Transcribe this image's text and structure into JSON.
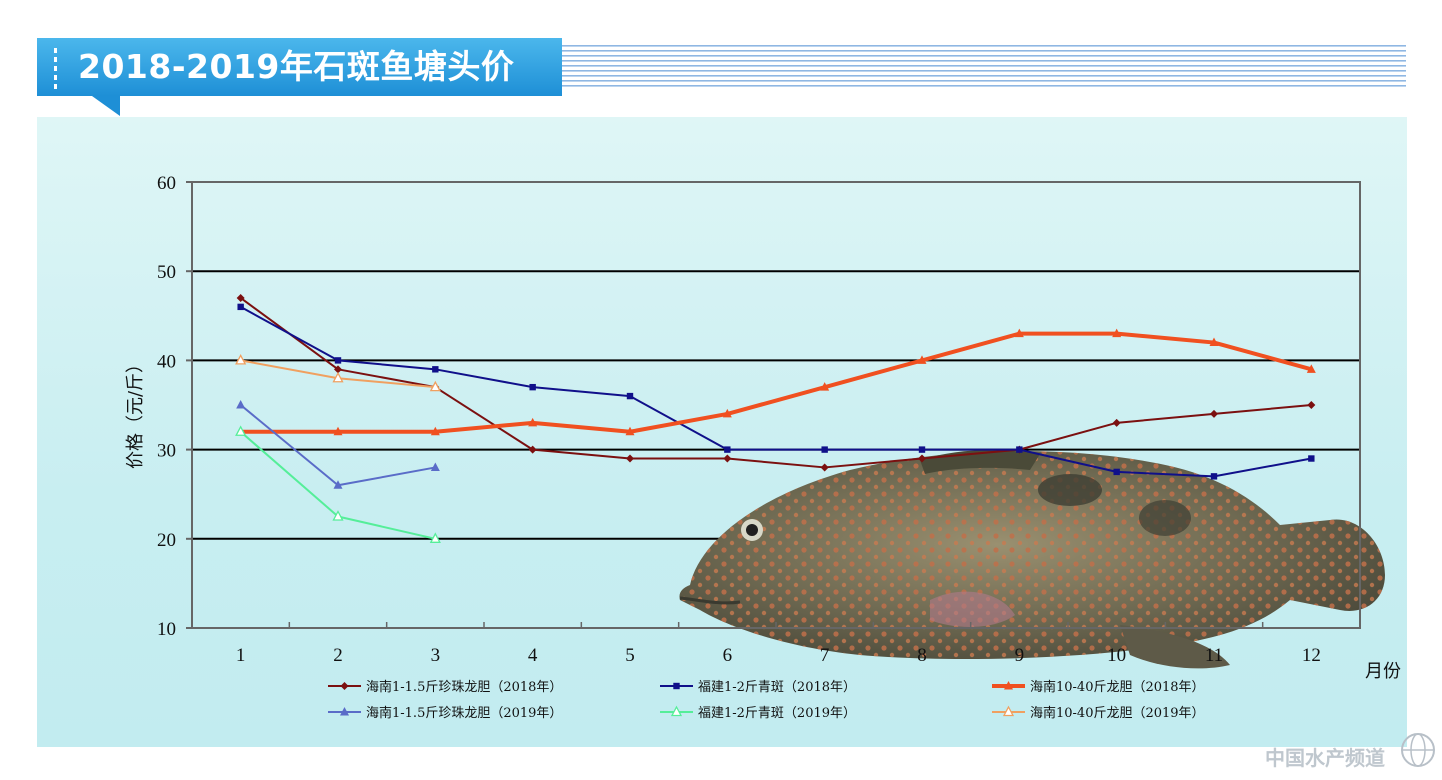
{
  "header": {
    "title": "2018-2019年石斑鱼塘头价"
  },
  "colors": {
    "banner_blue": "#2fa0de",
    "panel_background": "#c8eef1",
    "gridline": "#000000",
    "axis": "#666666"
  },
  "chart_data": {
    "type": "line",
    "title": "2018-2019年石斑鱼塘头价",
    "xlabel": "月份",
    "ylabel": "价格（元/斤）",
    "categories": [
      "1",
      "2",
      "3",
      "4",
      "5",
      "6",
      "7",
      "8",
      "9",
      "10",
      "11",
      "12"
    ],
    "x": [
      1,
      2,
      3,
      4,
      5,
      6,
      7,
      8,
      9,
      10,
      11,
      12
    ],
    "ylim": [
      10,
      60
    ],
    "yticks": [
      10,
      20,
      30,
      40,
      50,
      60
    ],
    "grid": true,
    "legend_position": "bottom",
    "series": [
      {
        "name": "海南1-1.5斤珍珠龙胆（2018年）",
        "color": "#7b1010",
        "marker": "diamond",
        "width": 2,
        "values": [
          47,
          39,
          37,
          30,
          29,
          29,
          28,
          29,
          30,
          33,
          34,
          35
        ]
      },
      {
        "name": "福建1-2斤青斑（2018年）",
        "color": "#10108a",
        "marker": "square",
        "width": 2,
        "values": [
          46,
          40,
          39,
          37,
          36,
          30,
          30,
          30,
          30,
          27.5,
          27,
          29
        ]
      },
      {
        "name": "海南10-40斤龙胆（2018年）",
        "color": "#f05020",
        "marker": "triangle",
        "width": 4,
        "values": [
          32,
          32,
          32,
          33,
          32,
          34,
          37,
          40,
          43,
          43,
          42,
          39
        ]
      },
      {
        "name": "海南1-1.5斤珍珠龙胆（2019年）",
        "color": "#5a6cc8",
        "marker": "triangle",
        "width": 2,
        "values": [
          35,
          26,
          28,
          null,
          null,
          null,
          null,
          null,
          null,
          null,
          null,
          null
        ]
      },
      {
        "name": "福建1-2斤青斑（2019年）",
        "color": "#55ee99",
        "marker": "triangle-open",
        "width": 2,
        "values": [
          32,
          22.5,
          20,
          null,
          null,
          null,
          null,
          null,
          null,
          null,
          null,
          null
        ]
      },
      {
        "name": "海南10-40斤龙胆（2019年）",
        "color": "#f0a060",
        "marker": "triangle-open",
        "width": 2,
        "values": [
          40,
          38,
          37,
          null,
          null,
          null,
          null,
          null,
          null,
          null,
          null,
          null
        ]
      }
    ]
  },
  "watermark": {
    "text": "中国水产频道",
    "icon": "globe-icon"
  },
  "images": {
    "fish": "grouper-fish-photo"
  }
}
